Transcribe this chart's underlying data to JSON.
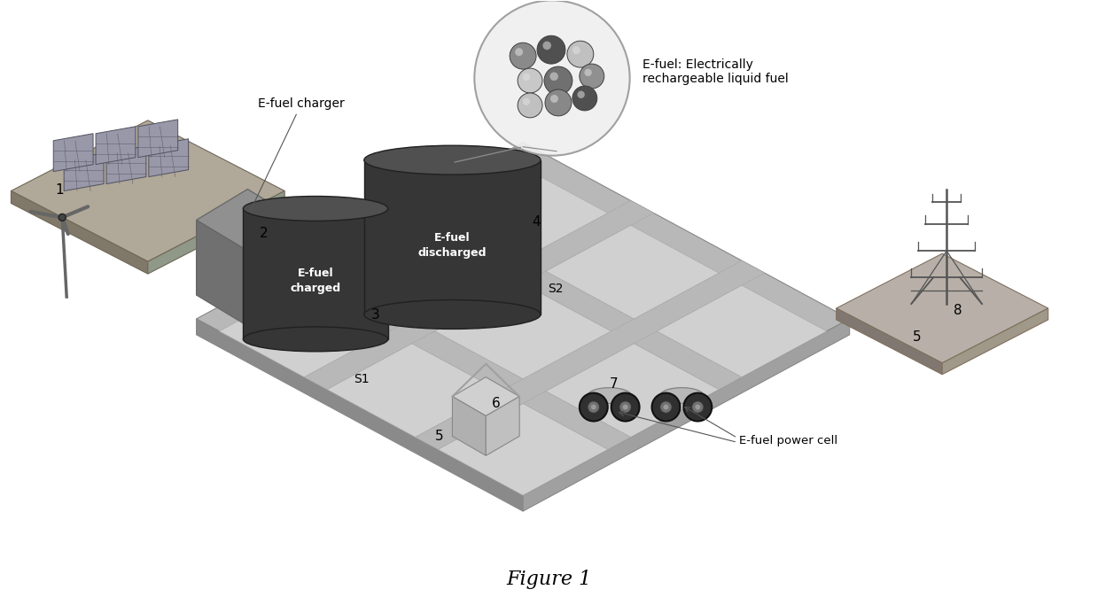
{
  "title": "Figure 1",
  "background_color": "#ffffff",
  "figure_width": 12.39,
  "figure_height": 6.92,
  "labels": {
    "efuel_charger": "E-fuel charger",
    "efuel_charged": "E-fuel\ncharged",
    "efuel_discharged": "E-fuel\ndischarged",
    "efuel_power_cell": "E-fuel power cell",
    "efuel_description": "E-fuel: Electrically\nrechargeable liquid fuel",
    "s1": "S1",
    "s2": "S2",
    "num1": "1",
    "num2": "2",
    "num3": "3",
    "num4": "4",
    "num5a": "5",
    "num5b": "5",
    "num6": "6",
    "num7": "7",
    "num8": "8"
  },
  "colors": {
    "main_platform_top": "#b8b8b8",
    "main_platform_left": "#8a8a8a",
    "main_platform_right": "#a0a0a0",
    "road_fill": "#d0d0d0",
    "road_edge": "#aaaaaa",
    "block_fill": "#c8c8c8",
    "sol_platform_top": "#b0a898",
    "sol_platform_side": "#807868",
    "tower_platform_top": "#b8b0a8",
    "tower_platform_side": "#807870",
    "tank_fill": "#363636",
    "tank_top": "#505050",
    "tank_edge": "#202020",
    "tank_text": "#ffffff",
    "charger_top": "#909090",
    "charger_left": "#707070",
    "charger_right": "#808080",
    "building_top": "#d0d0d0",
    "building_left": "#b0b0b0",
    "building_right": "#c0c0c0",
    "bubble_fill": "#efefef",
    "bubble_edge": "#999999",
    "sphere_dark": "#5a5a5a",
    "sphere_light": "#c0c0c0",
    "sphere_highlight": "#e0e0e0",
    "text_color": "#000000",
    "tower_color": "#555555",
    "wind_color": "#666666",
    "solar_color": "#9090a0",
    "solar_edge": "#606060",
    "car_body": "#c8c8c8",
    "car_wheel": "#303030",
    "car_hub": "#707070"
  }
}
